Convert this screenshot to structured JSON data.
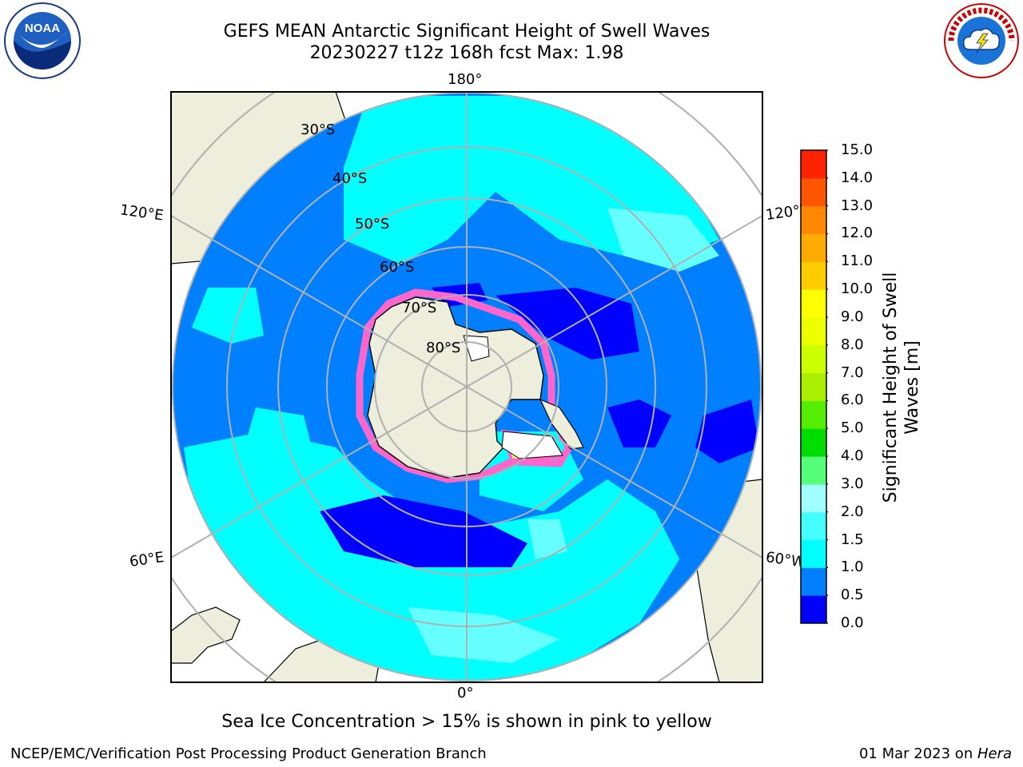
{
  "header": {
    "title_line1": "GEFS MEAN Antarctic Significant Height of Swell Waves",
    "title_line2": "20230227 t12z 168h fcst   Max: 1.98"
  },
  "logos": {
    "noaa_text": "NOAA",
    "noaa_ring_text": "NATIONAL OCEANIC AND ATMOSPHERIC ADMINISTRATION",
    "noaa_ring_bottom": "U.S. DEPARTMENT OF COMMERCE",
    "nws_ring_text": "NATIONAL WEATHER SERVICE"
  },
  "map": {
    "projection": "south-polar-stereographic",
    "longitude_labels": {
      "top": "180°",
      "bottom": "0°",
      "upper_left": "120°E",
      "upper_right": "120°W",
      "lower_left": "60°E",
      "lower_right": "60°W"
    },
    "latitude_labels": [
      "30°S",
      "40°S",
      "50°S",
      "60°S",
      "70°S",
      "80°S"
    ],
    "colors": {
      "land": "#eeeedc",
      "ocean_fill": "#0080ff",
      "swell_low": "#0000ff",
      "swell_high": "#00ffff",
      "swell_higher": "#66ffff",
      "ice_pink": "#ff66cc",
      "ice_yellow": "#ffff00",
      "ice_sheet": "#ffffff",
      "grid": "#b0b0b0"
    }
  },
  "colorbar": {
    "label": "Significant Height of Swell Waves [m]",
    "label_line1": "Significant Height of Swell",
    "label_line2": "Waves [m]",
    "ticks": [
      "0.0",
      "0.5",
      "1.0",
      "1.5",
      "2.0",
      "3.0",
      "4.0",
      "5.0",
      "6.0",
      "7.0",
      "8.0",
      "9.0",
      "10.0",
      "11.0",
      "12.0",
      "13.0",
      "14.0",
      "15.0"
    ],
    "colors": [
      "#0000ff",
      "#0080ff",
      "#00ffff",
      "#44ffff",
      "#a0ffff",
      "#55ff77",
      "#00dd00",
      "#55ee00",
      "#aaee00",
      "#ccff00",
      "#eeff00",
      "#ffff00",
      "#ffcc00",
      "#ffaa00",
      "#ff8800",
      "#ff5500",
      "#ff2200"
    ]
  },
  "note": "Sea Ice Concentration > 15% is shown in pink to yellow",
  "footer": {
    "left": "NCEP/EMC/Verification Post Processing Product Generation Branch",
    "right_prefix": "01 Mar 2023 on ",
    "right_machine": "Hera"
  }
}
